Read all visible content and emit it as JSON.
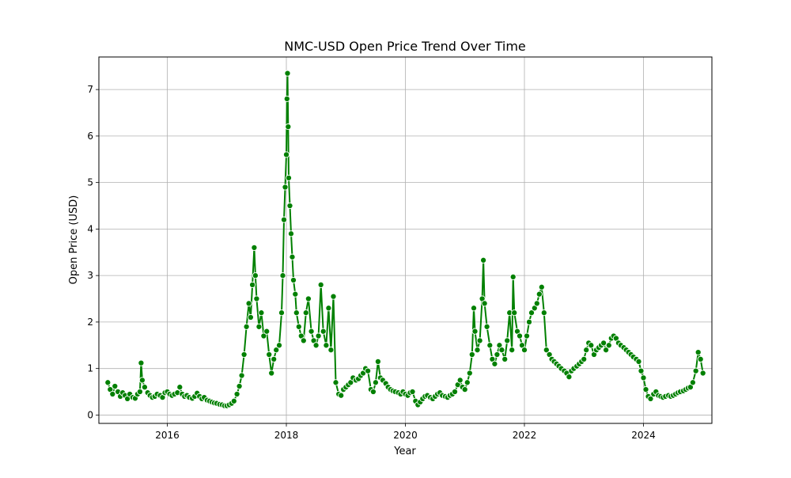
{
  "chart_data": {
    "type": "line",
    "title": "NMC-USD Open Price Trend Over Time",
    "xlabel": "Year",
    "ylabel": "Open Price (USD)",
    "xlim": [
      2014.85,
      2025.15
    ],
    "ylim": [
      -0.18,
      7.7
    ],
    "x_ticks": [
      2016,
      2018,
      2020,
      2022,
      2024
    ],
    "y_ticks": [
      0,
      1,
      2,
      3,
      4,
      5,
      6,
      7
    ],
    "grid": true,
    "legend": "none",
    "series": [
      {
        "line_color": "#008000",
        "marker": "circle",
        "marker_fill": "#008000",
        "marker_edge": "#ffffff",
        "points": [
          [
            2015.0,
            0.7
          ],
          [
            2015.04,
            0.55
          ],
          [
            2015.08,
            0.45
          ],
          [
            2015.12,
            0.62
          ],
          [
            2015.17,
            0.5
          ],
          [
            2015.21,
            0.4
          ],
          [
            2015.25,
            0.48
          ],
          [
            2015.29,
            0.42
          ],
          [
            2015.33,
            0.35
          ],
          [
            2015.37,
            0.45
          ],
          [
            2015.42,
            0.38
          ],
          [
            2015.46,
            0.36
          ],
          [
            2015.5,
            0.45
          ],
          [
            2015.54,
            0.5
          ],
          [
            2015.56,
            1.12
          ],
          [
            2015.58,
            0.75
          ],
          [
            2015.62,
            0.6
          ],
          [
            2015.67,
            0.48
          ],
          [
            2015.71,
            0.42
          ],
          [
            2015.75,
            0.38
          ],
          [
            2015.79,
            0.4
          ],
          [
            2015.83,
            0.45
          ],
          [
            2015.88,
            0.42
          ],
          [
            2015.92,
            0.38
          ],
          [
            2015.96,
            0.48
          ],
          [
            2016.0,
            0.5
          ],
          [
            2016.04,
            0.45
          ],
          [
            2016.08,
            0.42
          ],
          [
            2016.12,
            0.45
          ],
          [
            2016.17,
            0.48
          ],
          [
            2016.21,
            0.6
          ],
          [
            2016.25,
            0.45
          ],
          [
            2016.29,
            0.4
          ],
          [
            2016.33,
            0.42
          ],
          [
            2016.37,
            0.38
          ],
          [
            2016.42,
            0.36
          ],
          [
            2016.46,
            0.4
          ],
          [
            2016.5,
            0.47
          ],
          [
            2016.54,
            0.4
          ],
          [
            2016.58,
            0.35
          ],
          [
            2016.62,
            0.38
          ],
          [
            2016.67,
            0.32
          ],
          [
            2016.71,
            0.3
          ],
          [
            2016.75,
            0.28
          ],
          [
            2016.79,
            0.26
          ],
          [
            2016.83,
            0.25
          ],
          [
            2016.88,
            0.23
          ],
          [
            2016.92,
            0.22
          ],
          [
            2016.96,
            0.2
          ],
          [
            2017.0,
            0.2
          ],
          [
            2017.04,
            0.22
          ],
          [
            2017.08,
            0.25
          ],
          [
            2017.12,
            0.3
          ],
          [
            2017.17,
            0.45
          ],
          [
            2017.21,
            0.62
          ],
          [
            2017.25,
            0.85
          ],
          [
            2017.29,
            1.3
          ],
          [
            2017.33,
            1.9
          ],
          [
            2017.37,
            2.4
          ],
          [
            2017.4,
            2.1
          ],
          [
            2017.43,
            2.8
          ],
          [
            2017.46,
            3.6
          ],
          [
            2017.48,
            3.0
          ],
          [
            2017.5,
            2.5
          ],
          [
            2017.54,
            1.9
          ],
          [
            2017.58,
            2.2
          ],
          [
            2017.62,
            1.7
          ],
          [
            2017.67,
            1.8
          ],
          [
            2017.71,
            1.3
          ],
          [
            2017.75,
            0.9
          ],
          [
            2017.79,
            1.2
          ],
          [
            2017.83,
            1.4
          ],
          [
            2017.88,
            1.5
          ],
          [
            2017.92,
            2.2
          ],
          [
            2017.94,
            3.0
          ],
          [
            2017.96,
            4.2
          ],
          [
            2017.98,
            4.9
          ],
          [
            2018.0,
            5.6
          ],
          [
            2018.01,
            6.8
          ],
          [
            2018.02,
            7.35
          ],
          [
            2018.03,
            6.2
          ],
          [
            2018.04,
            5.1
          ],
          [
            2018.06,
            4.5
          ],
          [
            2018.08,
            3.9
          ],
          [
            2018.1,
            3.4
          ],
          [
            2018.12,
            2.9
          ],
          [
            2018.15,
            2.6
          ],
          [
            2018.17,
            2.2
          ],
          [
            2018.21,
            1.9
          ],
          [
            2018.25,
            1.7
          ],
          [
            2018.29,
            1.6
          ],
          [
            2018.33,
            2.2
          ],
          [
            2018.37,
            2.5
          ],
          [
            2018.42,
            1.8
          ],
          [
            2018.46,
            1.6
          ],
          [
            2018.5,
            1.5
          ],
          [
            2018.54,
            1.7
          ],
          [
            2018.58,
            2.8
          ],
          [
            2018.62,
            1.8
          ],
          [
            2018.67,
            1.5
          ],
          [
            2018.71,
            2.3
          ],
          [
            2018.75,
            1.4
          ],
          [
            2018.79,
            2.55
          ],
          [
            2018.83,
            0.7
          ],
          [
            2018.88,
            0.45
          ],
          [
            2018.92,
            0.42
          ],
          [
            2018.96,
            0.55
          ],
          [
            2019.0,
            0.6
          ],
          [
            2019.04,
            0.65
          ],
          [
            2019.08,
            0.7
          ],
          [
            2019.12,
            0.8
          ],
          [
            2019.17,
            0.75
          ],
          [
            2019.21,
            0.78
          ],
          [
            2019.25,
            0.85
          ],
          [
            2019.29,
            0.9
          ],
          [
            2019.33,
            1.0
          ],
          [
            2019.37,
            0.95
          ],
          [
            2019.42,
            0.55
          ],
          [
            2019.46,
            0.5
          ],
          [
            2019.5,
            0.7
          ],
          [
            2019.54,
            1.15
          ],
          [
            2019.58,
            0.8
          ],
          [
            2019.62,
            0.75
          ],
          [
            2019.67,
            0.68
          ],
          [
            2019.71,
            0.6
          ],
          [
            2019.75,
            0.55
          ],
          [
            2019.79,
            0.52
          ],
          [
            2019.83,
            0.5
          ],
          [
            2019.88,
            0.48
          ],
          [
            2019.92,
            0.45
          ],
          [
            2019.96,
            0.5
          ],
          [
            2020.0,
            0.45
          ],
          [
            2020.04,
            0.42
          ],
          [
            2020.08,
            0.48
          ],
          [
            2020.12,
            0.5
          ],
          [
            2020.17,
            0.3
          ],
          [
            2020.21,
            0.22
          ],
          [
            2020.25,
            0.28
          ],
          [
            2020.29,
            0.35
          ],
          [
            2020.33,
            0.4
          ],
          [
            2020.37,
            0.42
          ],
          [
            2020.42,
            0.38
          ],
          [
            2020.46,
            0.35
          ],
          [
            2020.5,
            0.4
          ],
          [
            2020.54,
            0.45
          ],
          [
            2020.58,
            0.48
          ],
          [
            2020.62,
            0.42
          ],
          [
            2020.67,
            0.4
          ],
          [
            2020.71,
            0.38
          ],
          [
            2020.75,
            0.42
          ],
          [
            2020.79,
            0.45
          ],
          [
            2020.83,
            0.5
          ],
          [
            2020.88,
            0.65
          ],
          [
            2020.92,
            0.75
          ],
          [
            2020.96,
            0.6
          ],
          [
            2021.0,
            0.55
          ],
          [
            2021.04,
            0.7
          ],
          [
            2021.08,
            0.9
          ],
          [
            2021.12,
            1.3
          ],
          [
            2021.15,
            2.3
          ],
          [
            2021.17,
            1.8
          ],
          [
            2021.21,
            1.4
          ],
          [
            2021.25,
            1.6
          ],
          [
            2021.29,
            2.5
          ],
          [
            2021.31,
            3.33
          ],
          [
            2021.33,
            2.4
          ],
          [
            2021.37,
            1.9
          ],
          [
            2021.42,
            1.5
          ],
          [
            2021.46,
            1.2
          ],
          [
            2021.5,
            1.1
          ],
          [
            2021.54,
            1.3
          ],
          [
            2021.58,
            1.5
          ],
          [
            2021.62,
            1.4
          ],
          [
            2021.67,
            1.2
          ],
          [
            2021.71,
            1.6
          ],
          [
            2021.75,
            2.2
          ],
          [
            2021.79,
            1.4
          ],
          [
            2021.81,
            2.97
          ],
          [
            2021.83,
            2.2
          ],
          [
            2021.88,
            1.8
          ],
          [
            2021.92,
            1.7
          ],
          [
            2021.96,
            1.5
          ],
          [
            2022.0,
            1.4
          ],
          [
            2022.04,
            1.7
          ],
          [
            2022.08,
            2.0
          ],
          [
            2022.12,
            2.2
          ],
          [
            2022.17,
            2.3
          ],
          [
            2022.21,
            2.4
          ],
          [
            2022.25,
            2.6
          ],
          [
            2022.29,
            2.75
          ],
          [
            2022.33,
            2.2
          ],
          [
            2022.37,
            1.4
          ],
          [
            2022.42,
            1.3
          ],
          [
            2022.46,
            1.2
          ],
          [
            2022.5,
            1.15
          ],
          [
            2022.54,
            1.1
          ],
          [
            2022.58,
            1.05
          ],
          [
            2022.62,
            1.0
          ],
          [
            2022.67,
            0.95
          ],
          [
            2022.71,
            0.9
          ],
          [
            2022.75,
            0.82
          ],
          [
            2022.79,
            0.95
          ],
          [
            2022.83,
            1.0
          ],
          [
            2022.88,
            1.05
          ],
          [
            2022.92,
            1.1
          ],
          [
            2022.96,
            1.15
          ],
          [
            2023.0,
            1.2
          ],
          [
            2023.04,
            1.4
          ],
          [
            2023.08,
            1.55
          ],
          [
            2023.12,
            1.5
          ],
          [
            2023.17,
            1.3
          ],
          [
            2023.21,
            1.4
          ],
          [
            2023.25,
            1.45
          ],
          [
            2023.29,
            1.5
          ],
          [
            2023.33,
            1.55
          ],
          [
            2023.37,
            1.4
          ],
          [
            2023.42,
            1.5
          ],
          [
            2023.46,
            1.65
          ],
          [
            2023.5,
            1.7
          ],
          [
            2023.54,
            1.65
          ],
          [
            2023.58,
            1.55
          ],
          [
            2023.62,
            1.5
          ],
          [
            2023.67,
            1.45
          ],
          [
            2023.71,
            1.4
          ],
          [
            2023.75,
            1.35
          ],
          [
            2023.79,
            1.3
          ],
          [
            2023.83,
            1.25
          ],
          [
            2023.88,
            1.2
          ],
          [
            2023.92,
            1.15
          ],
          [
            2023.96,
            0.95
          ],
          [
            2024.0,
            0.8
          ],
          [
            2024.04,
            0.55
          ],
          [
            2024.08,
            0.4
          ],
          [
            2024.12,
            0.35
          ],
          [
            2024.17,
            0.45
          ],
          [
            2024.21,
            0.5
          ],
          [
            2024.25,
            0.42
          ],
          [
            2024.29,
            0.4
          ],
          [
            2024.33,
            0.38
          ],
          [
            2024.37,
            0.4
          ],
          [
            2024.42,
            0.42
          ],
          [
            2024.46,
            0.4
          ],
          [
            2024.5,
            0.42
          ],
          [
            2024.54,
            0.45
          ],
          [
            2024.58,
            0.48
          ],
          [
            2024.62,
            0.5
          ],
          [
            2024.67,
            0.52
          ],
          [
            2024.71,
            0.55
          ],
          [
            2024.75,
            0.58
          ],
          [
            2024.79,
            0.6
          ],
          [
            2024.83,
            0.7
          ],
          [
            2024.88,
            0.95
          ],
          [
            2024.92,
            1.35
          ],
          [
            2024.96,
            1.2
          ],
          [
            2025.0,
            0.9
          ]
        ]
      }
    ]
  }
}
